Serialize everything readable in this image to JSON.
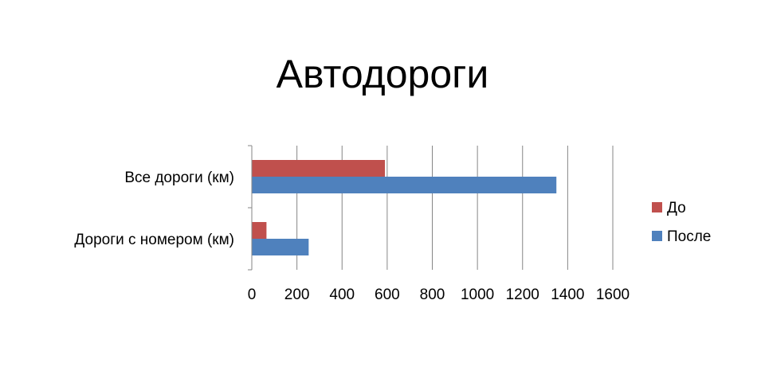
{
  "chart_data": {
    "type": "bar",
    "orientation": "horizontal",
    "title": "Автодороги",
    "categories": [
      "Все дороги (км)",
      "Дороги с номером (км)"
    ],
    "series": [
      {
        "name": "До",
        "color": "#c0504d",
        "values": [
          590,
          65
        ]
      },
      {
        "name": "После",
        "color": "#4f81bd",
        "values": [
          1350,
          252
        ]
      }
    ],
    "xlim": [
      0,
      1600
    ],
    "xticks": [
      "0",
      "200",
      "400",
      "600",
      "800",
      "1000",
      "1200",
      "1400",
      "1600"
    ],
    "grid": true,
    "legend_position": "right"
  }
}
